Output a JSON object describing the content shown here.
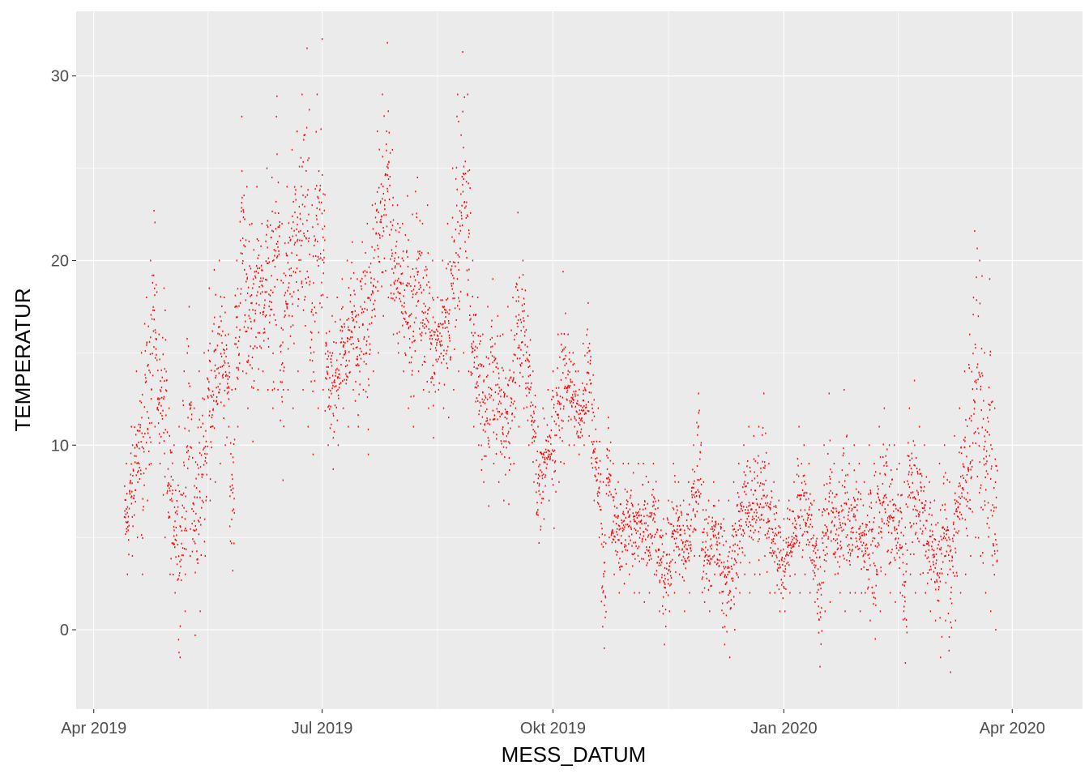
{
  "chart_data": {
    "type": "scatter",
    "title": "",
    "xlabel": "MESS_DATUM",
    "ylabel": "TEMPERATUR",
    "xlim": [
      "2019-03-25",
      "2020-04-29"
    ],
    "ylim": [
      -4.3,
      33.5
    ],
    "x_ticks": [
      {
        "date": "2019-04-01",
        "label": "Apr 2019"
      },
      {
        "date": "2019-07-01",
        "label": "Jul 2019"
      },
      {
        "date": "2019-10-01",
        "label": "Okt 2019"
      },
      {
        "date": "2020-01-01",
        "label": "Jan 2020"
      },
      {
        "date": "2020-04-01",
        "label": "Apr 2020"
      }
    ],
    "y_ticks": [
      0,
      10,
      20,
      30
    ],
    "grid": true,
    "point_color": "#ff0000",
    "panel_background": "#ebebeb",
    "grid_color": "#ffffff",
    "series": [
      {
        "daily_ranges": [
          [
            "2019-04-13",
            3.0,
            9.0
          ],
          [
            "2019-04-15",
            4.0,
            11.0
          ],
          [
            "2019-04-17",
            5.0,
            14.0
          ],
          [
            "2019-04-19",
            3.0,
            15.0
          ],
          [
            "2019-04-21",
            7.0,
            18.0
          ],
          [
            "2019-04-23",
            9.0,
            20.0
          ],
          [
            "2019-04-24",
            11.0,
            22.7
          ],
          [
            "2019-04-26",
            9.0,
            16.0
          ],
          [
            "2019-04-28",
            5.0,
            18.5
          ],
          [
            "2019-04-30",
            3.0,
            12.0
          ],
          [
            "2019-05-02",
            2.0,
            10.0
          ],
          [
            "2019-05-04",
            -1.5,
            11.0
          ],
          [
            "2019-05-06",
            1.0,
            14.0
          ],
          [
            "2019-05-08",
            4.0,
            17.5
          ],
          [
            "2019-05-10",
            -0.3,
            12.0
          ],
          [
            "2019-05-12",
            1.0,
            14.0
          ],
          [
            "2019-05-14",
            4.0,
            15.0
          ],
          [
            "2019-05-16",
            7.0,
            18.5
          ],
          [
            "2019-05-18",
            8.0,
            19.5
          ],
          [
            "2019-05-20",
            9.0,
            20.0
          ],
          [
            "2019-05-22",
            10.0,
            18.0
          ],
          [
            "2019-05-24",
            11.0,
            16.0
          ],
          [
            "2019-05-25",
            3.2,
            13.0
          ],
          [
            "2019-05-27",
            11.0,
            20.0
          ],
          [
            "2019-05-29",
            14.0,
            27.8
          ],
          [
            "2019-05-31",
            12.0,
            24.0
          ],
          [
            "2019-06-02",
            10.2,
            22.0
          ],
          [
            "2019-06-04",
            13.0,
            24.0
          ],
          [
            "2019-06-06",
            14.0,
            22.0
          ],
          [
            "2019-06-08",
            13.0,
            25.0
          ],
          [
            "2019-06-10",
            12.0,
            24.5
          ],
          [
            "2019-06-12",
            13.0,
            28.9
          ],
          [
            "2019-06-14",
            8.1,
            22.0
          ],
          [
            "2019-06-16",
            13.0,
            24.0
          ],
          [
            "2019-06-18",
            12.0,
            26.0
          ],
          [
            "2019-06-20",
            14.0,
            27.0
          ],
          [
            "2019-06-22",
            13.0,
            29.0
          ],
          [
            "2019-06-24",
            11.0,
            31.5
          ],
          [
            "2019-06-26",
            9.5,
            23.0
          ],
          [
            "2019-06-28",
            12.0,
            29.0
          ],
          [
            "2019-06-30",
            13.0,
            32.0
          ],
          [
            "2019-07-02",
            10.0,
            18.0
          ],
          [
            "2019-07-04",
            8.7,
            17.0
          ],
          [
            "2019-07-06",
            10.0,
            18.0
          ],
          [
            "2019-07-08",
            12.0,
            19.0
          ],
          [
            "2019-07-10",
            11.0,
            20.0
          ],
          [
            "2019-07-12",
            13.0,
            21.0
          ],
          [
            "2019-07-14",
            11.0,
            19.0
          ],
          [
            "2019-07-16",
            13.0,
            21.0
          ],
          [
            "2019-07-18",
            9.5,
            22.0
          ],
          [
            "2019-07-20",
            14.0,
            23.0
          ],
          [
            "2019-07-22",
            15.0,
            27.0
          ],
          [
            "2019-07-24",
            17.0,
            29.0
          ],
          [
            "2019-07-26",
            18.0,
            31.8
          ],
          [
            "2019-07-28",
            16.0,
            26.0
          ],
          [
            "2019-07-30",
            15.0,
            23.0
          ],
          [
            "2019-08-01",
            14.0,
            22.0
          ],
          [
            "2019-08-03",
            12.0,
            23.5
          ],
          [
            "2019-08-05",
            11.0,
            22.5
          ],
          [
            "2019-08-07",
            14.0,
            24.5
          ],
          [
            "2019-08-09",
            13.0,
            22.0
          ],
          [
            "2019-08-11",
            12.0,
            23.0
          ],
          [
            "2019-08-13",
            10.4,
            20.0
          ],
          [
            "2019-08-15",
            13.0,
            18.0
          ],
          [
            "2019-08-17",
            12.0,
            20.0
          ],
          [
            "2019-08-19",
            11.5,
            22.0
          ],
          [
            "2019-08-21",
            13.0,
            25.0
          ],
          [
            "2019-08-23",
            14.0,
            29.0
          ],
          [
            "2019-08-25",
            15.0,
            31.3
          ],
          [
            "2019-08-27",
            14.0,
            29.0
          ],
          [
            "2019-08-29",
            11.0,
            20.0
          ],
          [
            "2019-08-31",
            10.0,
            18.0
          ],
          [
            "2019-09-02",
            8.0,
            16.0
          ],
          [
            "2019-09-04",
            6.7,
            17.5
          ],
          [
            "2019-09-06",
            9.0,
            19.0
          ],
          [
            "2019-09-08",
            8.0,
            17.0
          ],
          [
            "2019-09-10",
            7.0,
            16.0
          ],
          [
            "2019-09-12",
            6.8,
            17.5
          ],
          [
            "2019-09-14",
            9.0,
            18.0
          ],
          [
            "2019-09-16",
            11.0,
            22.6
          ],
          [
            "2019-09-18",
            12.0,
            20.0
          ],
          [
            "2019-09-20",
            10.0,
            17.0
          ],
          [
            "2019-09-22",
            8.0,
            14.0
          ],
          [
            "2019-09-24",
            4.7,
            11.0
          ],
          [
            "2019-09-26",
            6.0,
            12.0
          ],
          [
            "2019-09-28",
            7.0,
            13.0
          ],
          [
            "2019-09-30",
            5.5,
            14.0
          ],
          [
            "2019-10-02",
            8.0,
            16.0
          ],
          [
            "2019-10-04",
            9.0,
            19.4
          ],
          [
            "2019-10-06",
            10.0,
            16.0
          ],
          [
            "2019-10-08",
            10.0,
            15.0
          ],
          [
            "2019-10-10",
            9.5,
            14.0
          ],
          [
            "2019-10-12",
            10.0,
            15.5
          ],
          [
            "2019-10-14",
            10.5,
            17.7
          ],
          [
            "2019-10-16",
            7.0,
            13.8
          ],
          [
            "2019-10-18",
            5.0,
            12.0
          ],
          [
            "2019-10-20",
            -1.0,
            8.0
          ],
          [
            "2019-10-22",
            5.0,
            11.5
          ],
          [
            "2019-10-24",
            3.0,
            9.0
          ],
          [
            "2019-10-26",
            2.0,
            8.0
          ],
          [
            "2019-10-28",
            2.5,
            9.0
          ],
          [
            "2019-10-30",
            3.0,
            9.0
          ],
          [
            "2019-11-01",
            2.0,
            8.5
          ],
          [
            "2019-11-03",
            2.0,
            9.0
          ],
          [
            "2019-11-05",
            1.5,
            9.0
          ],
          [
            "2019-11-07",
            2.0,
            8.0
          ],
          [
            "2019-11-09",
            3.0,
            9.0
          ],
          [
            "2019-11-11",
            1.0,
            7.0
          ],
          [
            "2019-11-13",
            -0.8,
            6.0
          ],
          [
            "2019-11-15",
            1.0,
            7.0
          ],
          [
            "2019-11-17",
            2.0,
            9.0
          ],
          [
            "2019-11-19",
            3.0,
            8.0
          ],
          [
            "2019-11-21",
            1.0,
            7.0
          ],
          [
            "2019-11-23",
            2.0,
            8.0
          ],
          [
            "2019-11-25",
            4.0,
            10.0
          ],
          [
            "2019-11-27",
            4.0,
            12.8
          ],
          [
            "2019-11-29",
            1.5,
            8.0
          ],
          [
            "2019-12-01",
            1.0,
            7.0
          ],
          [
            "2019-12-03",
            3.0,
            8.0
          ],
          [
            "2019-12-05",
            2.0,
            7.0
          ],
          [
            "2019-12-07",
            -0.8,
            6.0
          ],
          [
            "2019-12-09",
            -1.5,
            7.0
          ],
          [
            "2019-12-11",
            0.0,
            8.0
          ],
          [
            "2019-12-13",
            2.0,
            9.0
          ],
          [
            "2019-12-15",
            3.0,
            10.0
          ],
          [
            "2019-12-17",
            2.0,
            11.0
          ],
          [
            "2019-12-19",
            3.0,
            10.5
          ],
          [
            "2019-12-21",
            3.0,
            11.0
          ],
          [
            "2019-12-23",
            4.0,
            12.8
          ],
          [
            "2019-12-25",
            2.0,
            9.0
          ],
          [
            "2019-12-27",
            2.0,
            8.0
          ],
          [
            "2019-12-29",
            1.0,
            7.0
          ],
          [
            "2019-12-31",
            1.0,
            6.0
          ],
          [
            "2020-01-02",
            2.0,
            7.0
          ],
          [
            "2020-01-04",
            3.0,
            8.0
          ],
          [
            "2020-01-06",
            2.0,
            11.0
          ],
          [
            "2020-01-08",
            3.0,
            10.0
          ],
          [
            "2020-01-10",
            2.0,
            9.0
          ],
          [
            "2020-01-12",
            1.5,
            7.0
          ],
          [
            "2020-01-14",
            -2.0,
            6.5
          ],
          [
            "2020-01-16",
            1.0,
            10.0
          ],
          [
            "2020-01-18",
            1.5,
            12.8
          ],
          [
            "2020-01-20",
            3.0,
            9.0
          ],
          [
            "2020-01-22",
            2.0,
            8.0
          ],
          [
            "2020-01-24",
            1.0,
            13.0
          ],
          [
            "2020-01-26",
            2.0,
            9.0
          ],
          [
            "2020-01-28",
            2.0,
            10.0
          ],
          [
            "2020-01-30",
            1.0,
            9.0
          ],
          [
            "2020-02-01",
            2.0,
            8.0
          ],
          [
            "2020-02-03",
            0.5,
            10.0
          ],
          [
            "2020-02-05",
            -0.5,
            9.0
          ],
          [
            "2020-02-07",
            1.0,
            11.0
          ],
          [
            "2020-02-09",
            3.0,
            12.0
          ],
          [
            "2020-02-11",
            2.0,
            10.0
          ],
          [
            "2020-02-13",
            1.5,
            10.0
          ],
          [
            "2020-02-15",
            2.0,
            9.0
          ],
          [
            "2020-02-17",
            -1.8,
            8.0
          ],
          [
            "2020-02-19",
            3.0,
            12.0
          ],
          [
            "2020-02-21",
            2.0,
            13.5
          ],
          [
            "2020-02-23",
            3.0,
            11.0
          ],
          [
            "2020-02-25",
            2.0,
            10.0
          ],
          [
            "2020-02-27",
            1.0,
            8.0
          ],
          [
            "2020-02-29",
            0.5,
            7.0
          ],
          [
            "2020-03-02",
            -1.5,
            9.0
          ],
          [
            "2020-03-04",
            0.5,
            10.0
          ],
          [
            "2020-03-06",
            -2.3,
            8.0
          ],
          [
            "2020-03-08",
            0.5,
            10.5
          ],
          [
            "2020-03-10",
            2.0,
            12.0
          ],
          [
            "2020-03-12",
            3.0,
            14.0
          ],
          [
            "2020-03-14",
            4.0,
            16.0
          ],
          [
            "2020-03-16",
            5.0,
            21.6
          ],
          [
            "2020-03-18",
            4.0,
            20.0
          ],
          [
            "2020-03-20",
            2.0,
            15.0
          ],
          [
            "2020-03-22",
            1.0,
            19.0
          ],
          [
            "2020-03-24",
            0.0,
            12.0
          ]
        ]
      }
    ]
  }
}
